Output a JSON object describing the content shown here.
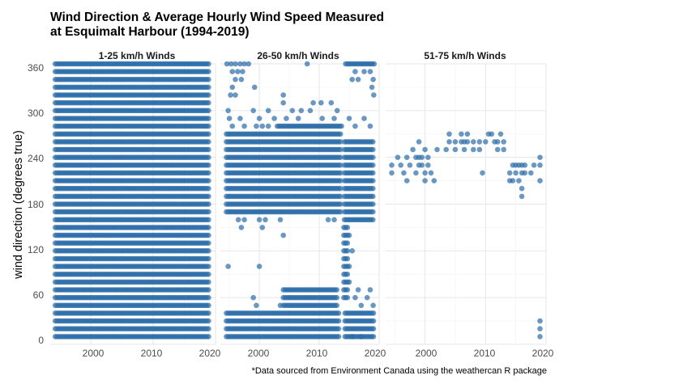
{
  "chart_data": {
    "type": "scatter",
    "title": [
      "Wind Direction & Average Hourly Wind Speed Measured",
      "at Esquimalt Harbour (1994-2019)"
    ],
    "xlabel": "",
    "ylabel": "wind direction (degrees true)",
    "caption": "*Data sourced from Environment Canada using the weathercan R package",
    "xlim": [
      1993.5,
      2020
    ],
    "ylim": [
      0,
      360
    ],
    "xticks": [
      "2000",
      "2010",
      "2020"
    ],
    "yticks": [
      "0",
      "60",
      "120",
      "180",
      "240",
      "300",
      "360"
    ],
    "grid": true,
    "point_color": "#2b6ca8",
    "panels": [
      {
        "label": "1-25 km/h Winds",
        "bands": [
          {
            "x_from": 1994.3,
            "x_to": 2019.1,
            "y": [
              10,
              20,
              30,
              40,
              50,
              60,
              70,
              80,
              90,
              100,
              110,
              120,
              130,
              140,
              150,
              160,
              170,
              180,
              190,
              200,
              210,
              220,
              230,
              240,
              250,
              260,
              270,
              280,
              290,
              300,
              310,
              320,
              330,
              340,
              350,
              360
            ]
          }
        ],
        "points": []
      },
      {
        "label": "26-50 km/h Winds",
        "bands": [
          {
            "x_from": 1994.5,
            "x_to": 2013.8,
            "y": [
              170,
              180,
              190,
              200,
              210,
              220,
              230,
              240,
              250,
              260,
              270
            ]
          },
          {
            "x_from": 2014.2,
            "x_to": 2019.2,
            "y": [
              160,
              170,
              180,
              190,
              200,
              210,
              220,
              230,
              240,
              250,
              260
            ]
          },
          {
            "x_from": 2014.1,
            "x_to": 2014.7,
            "y": [
              60,
              70,
              80,
              90,
              100,
              110,
              120,
              130,
              140,
              150
            ]
          },
          {
            "x_from": 1994.5,
            "x_to": 2013.5,
            "y": [
              10,
              20,
              30,
              40
            ]
          },
          {
            "x_from": 2014.3,
            "x_to": 2019.2,
            "y": [
              10,
              20,
              30,
              40
            ]
          },
          {
            "x_from": 2004.0,
            "x_to": 2013.0,
            "y": [
              50,
              60,
              70
            ]
          },
          {
            "x_from": 2003.0,
            "x_to": 2013.8,
            "y": [
              280
            ]
          },
          {
            "x_from": 2014.4,
            "x_to": 2019.2,
            "y": [
              360
            ]
          }
        ],
        "points": [
          [
            1994.6,
            360
          ],
          [
            1995.3,
            360
          ],
          [
            1996.0,
            360
          ],
          [
            1996.8,
            360
          ],
          [
            1997.5,
            360
          ],
          [
            1998.2,
            360
          ],
          [
            2008.0,
            360
          ],
          [
            1995.5,
            350
          ],
          [
            1996.4,
            350
          ],
          [
            1997.2,
            350
          ],
          [
            1996.0,
            340
          ],
          [
            1997.0,
            340
          ],
          [
            1995.5,
            330
          ],
          [
            1996.0,
            320
          ],
          [
            1995.2,
            320
          ],
          [
            1999.2,
            330
          ],
          [
            2004.0,
            320
          ],
          [
            1994.8,
            300
          ],
          [
            1999.0,
            300
          ],
          [
            2004.0,
            310
          ],
          [
            2005.5,
            300
          ],
          [
            2007.0,
            300
          ],
          [
            2008.5,
            300
          ],
          [
            2010.3,
            310
          ],
          [
            2012.0,
            310
          ],
          [
            2013.0,
            300
          ],
          [
            2009.0,
            310
          ],
          [
            2001.5,
            300
          ],
          [
            1995.0,
            290
          ],
          [
            1996.8,
            290
          ],
          [
            2000.0,
            290
          ],
          [
            2002.5,
            290
          ],
          [
            2004.5,
            290
          ],
          [
            2006.5,
            290
          ],
          [
            2010.5,
            290
          ],
          [
            2012.5,
            290
          ],
          [
            1995.5,
            280
          ],
          [
            1997.5,
            280
          ],
          [
            1999.5,
            280
          ],
          [
            2000.5,
            280
          ],
          [
            2001.5,
            280
          ],
          [
            1996.5,
            160
          ],
          [
            1997.5,
            160
          ],
          [
            2000.0,
            160
          ],
          [
            2001.0,
            160
          ],
          [
            2003.5,
            160
          ],
          [
            2011.5,
            160
          ],
          [
            2012.5,
            160
          ],
          [
            1997.0,
            150
          ],
          [
            2000.5,
            150
          ],
          [
            2004.0,
            140
          ],
          [
            1994.8,
            100
          ],
          [
            2000.0,
            100
          ],
          [
            1999.0,
            60
          ],
          [
            1999.5,
            50
          ],
          [
            2003.5,
            50
          ],
          [
            2015.0,
            290
          ],
          [
            2016.0,
            280
          ],
          [
            2017.5,
            290
          ],
          [
            2018.5,
            280
          ],
          [
            2019.1,
            320
          ],
          [
            2018.8,
            330
          ],
          [
            2015.5,
            340
          ],
          [
            2016.5,
            340
          ],
          [
            2017.5,
            350
          ],
          [
            2018.5,
            350
          ],
          [
            2016.0,
            350
          ],
          [
            2019.0,
            340
          ],
          [
            2015.0,
            140
          ],
          [
            2015.5,
            120
          ],
          [
            2015.0,
            100
          ],
          [
            2015.0,
            80
          ],
          [
            2016.0,
            60
          ],
          [
            2017.0,
            50
          ],
          [
            2018.0,
            60
          ],
          [
            2019.0,
            50
          ],
          [
            2016.5,
            70
          ],
          [
            2018.5,
            70
          ],
          [
            2015.5,
            10
          ],
          [
            2017.0,
            10
          ]
        ]
      },
      {
        "label": "51-75 km/h Winds",
        "bands": [],
        "points": [
          [
            1994.5,
            230
          ],
          [
            1994.5,
            220
          ],
          [
            1995.5,
            240
          ],
          [
            1996.0,
            230
          ],
          [
            1996.5,
            220
          ],
          [
            1997.0,
            240
          ],
          [
            1997.0,
            210
          ],
          [
            1997.5,
            230
          ],
          [
            1998.0,
            250
          ],
          [
            1998.5,
            240
          ],
          [
            1998.5,
            220
          ],
          [
            1999.0,
            240
          ],
          [
            1999.0,
            230
          ],
          [
            1999.0,
            260
          ],
          [
            1999.5,
            240
          ],
          [
            1999.5,
            230
          ],
          [
            2000.0,
            220
          ],
          [
            2000.0,
            210
          ],
          [
            2000.0,
            250
          ],
          [
            2000.5,
            240
          ],
          [
            2000.5,
            230
          ],
          [
            2001.0,
            220
          ],
          [
            2001.5,
            210
          ],
          [
            2002.0,
            250
          ],
          [
            2003.5,
            250
          ],
          [
            2004.0,
            260
          ],
          [
            2004.0,
            270
          ],
          [
            2005.0,
            260
          ],
          [
            2005.0,
            250
          ],
          [
            2006.0,
            260
          ],
          [
            2006.0,
            270
          ],
          [
            2006.5,
            260
          ],
          [
            2006.5,
            250
          ],
          [
            2007.0,
            270
          ],
          [
            2007.0,
            260
          ],
          [
            2008.0,
            260
          ],
          [
            2008.0,
            250
          ],
          [
            2009.0,
            260
          ],
          [
            2009.0,
            250
          ],
          [
            2009.5,
            220
          ],
          [
            2010.0,
            260
          ],
          [
            2010.5,
            270
          ],
          [
            2011.0,
            270
          ],
          [
            2011.5,
            260
          ],
          [
            2012.0,
            260
          ],
          [
            2012.0,
            250
          ],
          [
            2012.5,
            270
          ],
          [
            2013.0,
            260
          ],
          [
            2013.0,
            250
          ],
          [
            2014.0,
            210
          ],
          [
            2014.0,
            220
          ],
          [
            2014.5,
            210
          ],
          [
            2014.5,
            230
          ],
          [
            2015.0,
            230
          ],
          [
            2015.0,
            220
          ],
          [
            2015.5,
            230
          ],
          [
            2015.5,
            210
          ],
          [
            2016.0,
            230
          ],
          [
            2016.0,
            220
          ],
          [
            2016.0,
            200
          ],
          [
            2016.0,
            190
          ],
          [
            2016.5,
            230
          ],
          [
            2016.5,
            220
          ],
          [
            2017.5,
            220
          ],
          [
            2018.0,
            230
          ],
          [
            2019.0,
            240
          ],
          [
            2019.0,
            230
          ],
          [
            2019.0,
            210
          ],
          [
            2019.0,
            30
          ],
          [
            2019.0,
            20
          ],
          [
            2019.0,
            10
          ]
        ]
      }
    ]
  }
}
